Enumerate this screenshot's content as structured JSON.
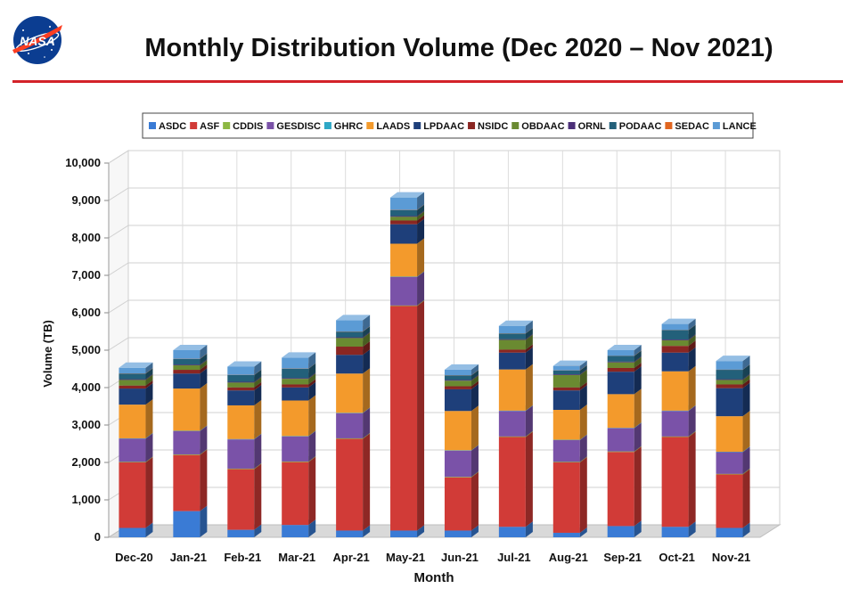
{
  "page": {
    "title": "Monthly Distribution Volume (Dec 2020 – Nov 2021)",
    "logo_text": "NASA",
    "accent_color": "#d32229"
  },
  "chart_data": {
    "type": "bar",
    "stacked": true,
    "three_d": true,
    "title": "",
    "xlabel": "Month",
    "ylabel": "Volume (TB)",
    "ylim": [
      0,
      10000
    ],
    "yticks": [
      0,
      1000,
      2000,
      3000,
      4000,
      5000,
      6000,
      7000,
      8000,
      9000,
      10000
    ],
    "ytick_labels": [
      "0",
      "1,000",
      "2,000",
      "3,000",
      "4,000",
      "5,000",
      "6,000",
      "7,000",
      "8,000",
      "9,000",
      "10,000"
    ],
    "grid": true,
    "legend_position": "top",
    "categories": [
      "Dec-20",
      "Jan-21",
      "Feb-21",
      "Mar-21",
      "Apr-21",
      "May-21",
      "Jun-21",
      "Jul-21",
      "Aug-21",
      "Sep-21",
      "Oct-21",
      "Nov-21"
    ],
    "series": [
      {
        "name": "ASDC",
        "color": "#3a7bd5",
        "values": [
          250,
          700,
          200,
          330,
          180,
          180,
          180,
          280,
          120,
          300,
          280,
          250
        ]
      },
      {
        "name": "ASF",
        "color": "#d13b37",
        "values": [
          1750,
          1500,
          1620,
          1680,
          2450,
          6000,
          1420,
          2400,
          1880,
          1980,
          2400,
          1430
        ]
      },
      {
        "name": "CDDIS",
        "color": "#8db843",
        "values": [
          15,
          15,
          15,
          15,
          15,
          15,
          15,
          15,
          15,
          15,
          15,
          15
        ]
      },
      {
        "name": "GESDISC",
        "color": "#7a52a8",
        "values": [
          620,
          620,
          780,
          670,
          670,
          760,
          700,
          680,
          580,
          620,
          680,
          580
        ]
      },
      {
        "name": "GHRC",
        "color": "#2fa8c6",
        "values": [
          10,
          10,
          10,
          10,
          10,
          10,
          10,
          10,
          10,
          10,
          10,
          10
        ]
      },
      {
        "name": "LAADS",
        "color": "#f39a2c",
        "values": [
          900,
          1130,
          900,
          950,
          1050,
          880,
          1050,
          1100,
          800,
          900,
          1050,
          950
        ]
      },
      {
        "name": "LPDAAC",
        "color": "#1e3f7a",
        "values": [
          430,
          400,
          400,
          350,
          500,
          520,
          580,
          450,
          520,
          600,
          500,
          750
        ]
      },
      {
        "name": "NSIDC",
        "color": "#8a2622",
        "values": [
          80,
          100,
          80,
          80,
          220,
          100,
          80,
          80,
          80,
          100,
          180,
          100
        ]
      },
      {
        "name": "OBDAAC",
        "color": "#6a8a31",
        "values": [
          150,
          120,
          130,
          150,
          230,
          100,
          150,
          260,
          330,
          150,
          150,
          120
        ]
      },
      {
        "name": "ORNL",
        "color": "#4b2f78",
        "values": [
          20,
          20,
          20,
          20,
          20,
          20,
          20,
          20,
          20,
          20,
          20,
          20
        ]
      },
      {
        "name": "PODAAC",
        "color": "#23607a",
        "values": [
          150,
          150,
          180,
          250,
          150,
          160,
          120,
          150,
          100,
          150,
          250,
          250
        ]
      },
      {
        "name": "SEDAC",
        "color": "#e0651f",
        "values": [
          5,
          5,
          5,
          5,
          5,
          5,
          5,
          5,
          5,
          5,
          5,
          5
        ]
      },
      {
        "name": "LANCE",
        "color": "#5b9bd5",
        "values": [
          150,
          230,
          220,
          290,
          300,
          330,
          150,
          200,
          120,
          150,
          160,
          230
        ]
      }
    ]
  }
}
